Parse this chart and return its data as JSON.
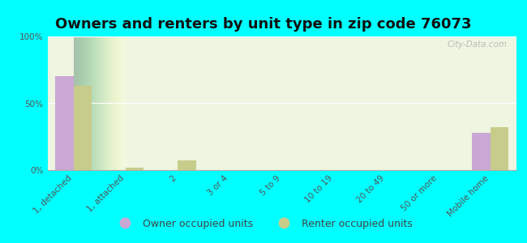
{
  "title": "Owners and renters by unit type in zip code 76073",
  "categories": [
    "1, detached",
    "1, attached",
    "2",
    "3 or 4",
    "5 to 9",
    "10 to 19",
    "20 to 49",
    "50 or more",
    "Mobile home"
  ],
  "owner_values": [
    70,
    0,
    0,
    0,
    0,
    0,
    0,
    0,
    28
  ],
  "renter_values": [
    63,
    2,
    7,
    0,
    0,
    0,
    0,
    0,
    32
  ],
  "owner_color": "#c9a8d4",
  "renter_color": "#c8cc8a",
  "background_color": "#00ffff",
  "plot_bg_color": "#eef5e0",
  "ylabel_ticks": [
    "0%",
    "50%",
    "100%"
  ],
  "ytick_vals": [
    0,
    50,
    100
  ],
  "ylim": [
    0,
    100
  ],
  "bar_width": 0.35,
  "legend_owner": "Owner occupied units",
  "legend_renter": "Renter occupied units",
  "title_fontsize": 13,
  "tick_fontsize": 7.5,
  "legend_fontsize": 9,
  "watermark": "City-Data.com"
}
